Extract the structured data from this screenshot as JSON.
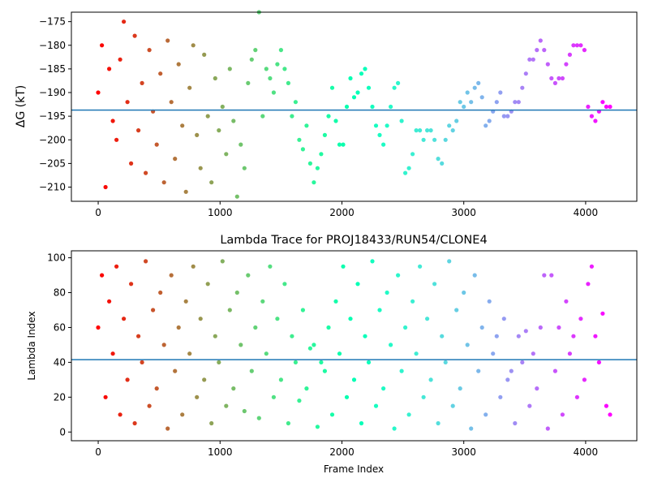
{
  "chart_data": [
    {
      "type": "scatter",
      "title": "",
      "xlabel": "",
      "ylabel": "ΔG (kT)",
      "xlim": [
        -220,
        4420
      ],
      "ylim": [
        -213,
        -173
      ],
      "xticks": [
        0,
        1000,
        2000,
        3000,
        4000
      ],
      "xtick_labels": [
        "0",
        "1000",
        "2000",
        "3000",
        "4000"
      ],
      "yticks": [
        -175,
        -180,
        -185,
        -190,
        -195,
        -200,
        -205,
        -210
      ],
      "ytick_labels": [
        "−175",
        "−180",
        "−185",
        "−190",
        "−195",
        "−200",
        "−205",
        "−210"
      ],
      "hline": -193.7,
      "hline_color": "#1f77b4",
      "colormap": "rainbow (reversed: red at frame 0, violet at end)",
      "series": [
        {
          "x": [
            0,
            30,
            60,
            90,
            120,
            150,
            180,
            210,
            240,
            270,
            300,
            330,
            360,
            390,
            420,
            450,
            480,
            510,
            540,
            570,
            600,
            630,
            660,
            690,
            720,
            750,
            780,
            810,
            840,
            870,
            900,
            930,
            960,
            990,
            1020,
            1050,
            1080,
            1110,
            1140,
            1170,
            1200,
            1230,
            1260,
            1290,
            1320,
            1350,
            1380,
            1410,
            1440,
            1470,
            1500,
            1530,
            1560,
            1590,
            1620,
            1650,
            1680,
            1710,
            1740,
            1770,
            1800,
            1830,
            1860,
            1890,
            1920,
            1950,
            1980,
            2010,
            2040,
            2070,
            2100,
            2130,
            2160,
            2190,
            2220,
            2250,
            2280,
            2310,
            2340,
            2370,
            2400,
            2430,
            2460,
            2490,
            2520,
            2550,
            2580,
            2610,
            2640,
            2670,
            2700,
            2730,
            2760,
            2790,
            2820,
            2850,
            2880,
            2910,
            2940,
            2970,
            3000,
            3030,
            3060,
            3090,
            3120,
            3150,
            3180,
            3210,
            3240,
            3270,
            3300,
            3330,
            3360,
            3390,
            3420,
            3450,
            3480,
            3510,
            3540,
            3570,
            3600,
            3630,
            3660,
            3690,
            3720,
            3750,
            3780,
            3810,
            3840,
            3870,
            3900,
            3930,
            3960,
            3990,
            4020,
            4050,
            4080,
            4110,
            4140,
            4170,
            4200
          ],
          "y": [
            -190,
            -180,
            -210,
            -185,
            -196,
            -200,
            -183,
            -175,
            -192,
            -205,
            -178,
            -198,
            -188,
            -207,
            -181,
            -194,
            -201,
            -186,
            -209,
            -179,
            -192,
            -204,
            -184,
            -197,
            -211,
            -189,
            -180,
            -199,
            -206,
            -182,
            -195,
            -209,
            -187,
            -198,
            -193,
            -203,
            -185,
            -196,
            -212,
            -201,
            -206,
            -188,
            -183,
            -181,
            -173,
            -195,
            -185,
            -187,
            -190,
            -184,
            -181,
            -185,
            -188,
            -195,
            -192,
            -200,
            -202,
            -197,
            -205,
            -209,
            -206,
            -203,
            -199,
            -195,
            -189,
            -196,
            -201,
            -201,
            -193,
            -187,
            -191,
            -190,
            -186,
            -185,
            -189,
            -193,
            -197,
            -199,
            -201,
            -197,
            -193,
            -189,
            -188,
            -196,
            -207,
            -206,
            -203,
            -198,
            -198,
            -200,
            -198,
            -198,
            -200,
            -204,
            -205,
            -200,
            -197,
            -198,
            -196,
            -192,
            -193,
            -190,
            -192,
            -189,
            -188,
            -191,
            -197,
            -196,
            -194,
            -192,
            -190,
            -195,
            -195,
            -194,
            -192,
            -192,
            -189,
            -186,
            -183,
            -183,
            -181,
            -179,
            -181,
            -184,
            -187,
            -188,
            -187,
            -187,
            -184,
            -182,
            -180,
            -180,
            -180,
            -181,
            -193,
            -195,
            -196,
            -194,
            -192,
            -193,
            -193
          ]
        }
      ]
    },
    {
      "type": "scatter",
      "title": "Lambda Trace for PROJ18433/RUN54/CLONE4",
      "xlabel": "Frame Index",
      "ylabel": "Lambda Index",
      "xlim": [
        -220,
        4420
      ],
      "ylim": [
        -5,
        104
      ],
      "xticks": [
        0,
        1000,
        2000,
        3000,
        4000
      ],
      "xtick_labels": [
        "0",
        "1000",
        "2000",
        "3000",
        "4000"
      ],
      "yticks": [
        0,
        20,
        40,
        60,
        80,
        100
      ],
      "ytick_labels": [
        "0",
        "20",
        "40",
        "60",
        "80",
        "100"
      ],
      "hline": 41.5,
      "hline_color": "#1f77b4",
      "colormap": "rainbow (reversed: red at frame 0, violet at end)",
      "series": [
        {
          "x": [
            0,
            30,
            60,
            90,
            120,
            150,
            180,
            210,
            240,
            270,
            300,
            330,
            360,
            390,
            420,
            450,
            480,
            510,
            540,
            570,
            600,
            630,
            660,
            690,
            720,
            750,
            780,
            810,
            840,
            870,
            900,
            930,
            960,
            990,
            1020,
            1050,
            1080,
            1110,
            1140,
            1170,
            1200,
            1230,
            1260,
            1290,
            1320,
            1350,
            1380,
            1410,
            1440,
            1470,
            1500,
            1530,
            1560,
            1590,
            1620,
            1650,
            1680,
            1710,
            1740,
            1770,
            1800,
            1830,
            1860,
            1890,
            1920,
            1950,
            1980,
            2010,
            2040,
            2070,
            2100,
            2130,
            2160,
            2190,
            2220,
            2250,
            2280,
            2310,
            2340,
            2370,
            2400,
            2430,
            2460,
            2490,
            2520,
            2550,
            2580,
            2610,
            2640,
            2670,
            2700,
            2730,
            2760,
            2790,
            2820,
            2850,
            2880,
            2910,
            2940,
            2970,
            3000,
            3030,
            3060,
            3090,
            3120,
            3150,
            3180,
            3210,
            3240,
            3270,
            3300,
            3330,
            3360,
            3390,
            3420,
            3450,
            3480,
            3510,
            3540,
            3570,
            3600,
            3630,
            3660,
            3690,
            3720,
            3750,
            3780,
            3810,
            3840,
            3870,
            3900,
            3930,
            3960,
            3990,
            4020,
            4050,
            4080,
            4110,
            4140,
            4170,
            4200
          ],
          "y": [
            60,
            90,
            20,
            75,
            45,
            95,
            10,
            65,
            30,
            85,
            5,
            55,
            40,
            98,
            15,
            70,
            25,
            80,
            50,
            2,
            90,
            35,
            60,
            10,
            75,
            45,
            95,
            20,
            65,
            30,
            85,
            5,
            55,
            40,
            98,
            15,
            70,
            25,
            80,
            50,
            12,
            90,
            35,
            60,
            8,
            75,
            45,
            95,
            20,
            65,
            30,
            85,
            5,
            55,
            40,
            18,
            70,
            25,
            48,
            50,
            3,
            40,
            35,
            60,
            10,
            75,
            45,
            95,
            20,
            65,
            30,
            85,
            5,
            55,
            40,
            98,
            15,
            70,
            25,
            80,
            50,
            2,
            90,
            35,
            60,
            10,
            75,
            45,
            95,
            20,
            65,
            30,
            85,
            5,
            55,
            40,
            98,
            15,
            70,
            25,
            80,
            50,
            2,
            90,
            35,
            60,
            10,
            75,
            45,
            55,
            20,
            65,
            30,
            35,
            5,
            55,
            40,
            58,
            15,
            45,
            25,
            60,
            90,
            2,
            90,
            35,
            60,
            10,
            75,
            45,
            55,
            20,
            65,
            30,
            85,
            95,
            55,
            40,
            68,
            15,
            10
          ]
        }
      ]
    }
  ]
}
